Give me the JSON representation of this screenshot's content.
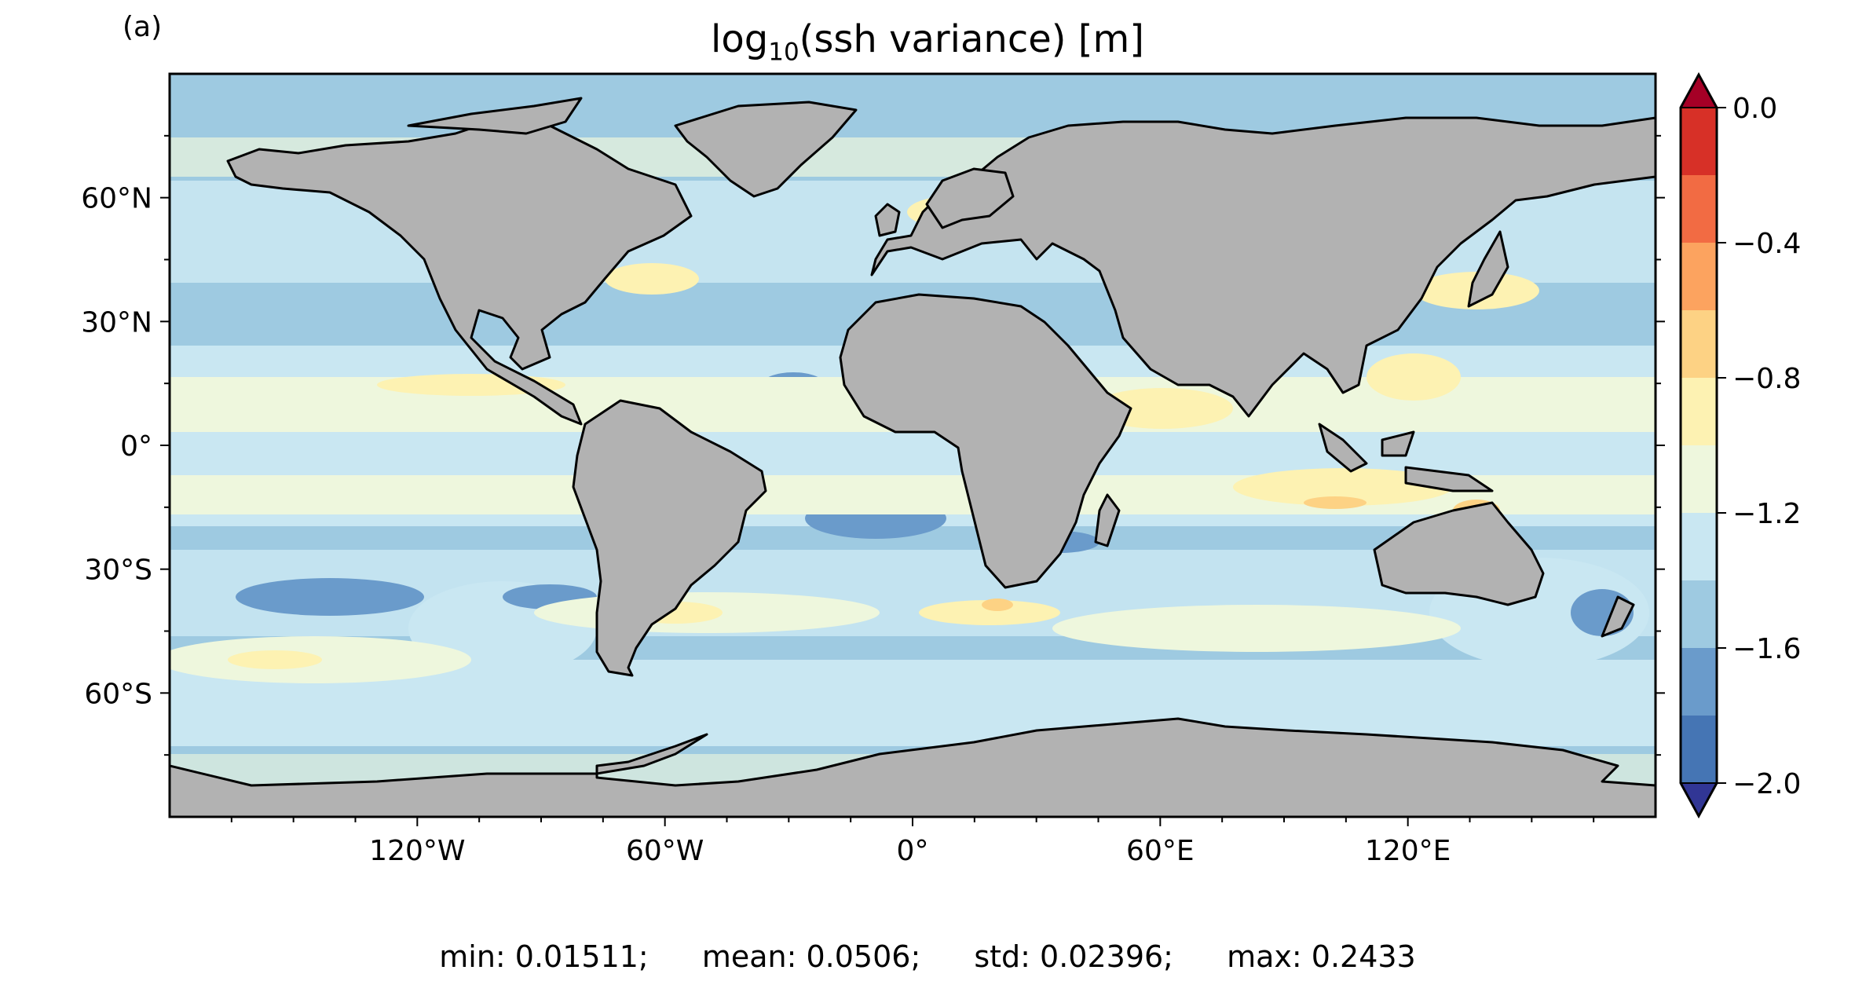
{
  "figure": {
    "panel_label": "(a)",
    "title_prefix": "log",
    "title_sub": "10",
    "title_suffix": "(ssh variance) [m]"
  },
  "map": {
    "projection": "PlateCarree",
    "lon_range": [
      -180,
      180
    ],
    "lat_range": [
      -90,
      90
    ],
    "land_color": "#b2b2b2",
    "coastline_color": "#000000",
    "field": "log10(ssh variance)"
  },
  "axes": {
    "x_ticks": [
      "120°W",
      "60°W",
      "0°",
      "60°E",
      "120°E"
    ],
    "x_tick_values": [
      -120,
      -60,
      0,
      60,
      120
    ],
    "y_ticks": [
      "60°N",
      "30°N",
      "0°",
      "30°S",
      "60°S"
    ],
    "y_tick_values": [
      60,
      30,
      0,
      -30,
      -60
    ]
  },
  "colorbar": {
    "ticks": [
      "0.0",
      "−0.4",
      "−0.8",
      "−1.2",
      "−1.6",
      "−2.0"
    ],
    "tick_values": [
      0.0,
      -0.4,
      -0.8,
      -1.2,
      -1.6,
      -2.0
    ],
    "range": [
      -2.0,
      0.0
    ],
    "levels": [
      -2.0,
      -1.8,
      -1.6,
      -1.4,
      -1.2,
      -1.0,
      -0.8,
      -0.6,
      -0.4,
      -0.2,
      0.0
    ],
    "extend": "both",
    "colors_low_to_high": [
      "#4575b4",
      "#6a9bcb",
      "#9ecae1",
      "#c9e7f2",
      "#eef7dd",
      "#fdf2b2",
      "#fdd284",
      "#fca35f",
      "#f26b43",
      "#d73027"
    ],
    "under_color": "#313695",
    "over_color": "#a50026"
  },
  "stats": {
    "min": "min: 0.01511;",
    "mean": "mean: 0.0506;",
    "std": "std: 0.02396;",
    "max": "max: 0.2433"
  }
}
